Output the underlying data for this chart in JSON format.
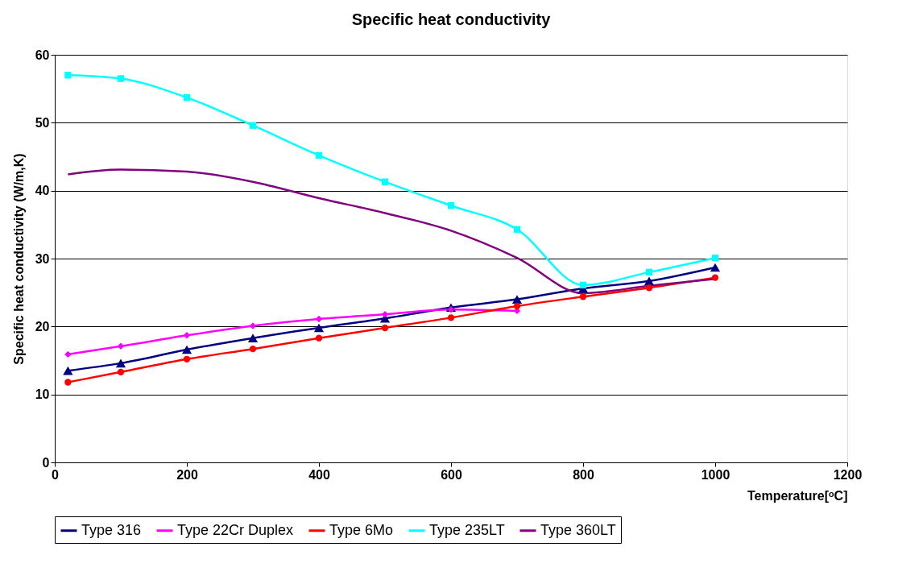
{
  "chart_data": {
    "type": "line",
    "title": "Specific heat conductivity",
    "xlabel": "Temperature[ᵒC]",
    "ylabel": "Specific heat conductivity (W/m,K)",
    "x": [
      20,
      100,
      200,
      300,
      400,
      500,
      600,
      700,
      800,
      900,
      1000
    ],
    "series": [
      {
        "name": "Type 316",
        "color": "#000080",
        "marker": "triangle",
        "values": [
          13.5,
          14.6,
          16.6,
          18.3,
          19.8,
          21.2,
          22.8,
          24.0,
          25.6,
          26.7,
          28.7
        ]
      },
      {
        "name": "Type 22Cr Duplex",
        "color": "#ff00ff",
        "marker": "diamond",
        "values": [
          15.9,
          17.1,
          18.7,
          20.1,
          21.1,
          21.8,
          22.5,
          22.3,
          null,
          null,
          null
        ]
      },
      {
        "name": "Type 6Mo",
        "color": "#ff0000",
        "marker": "circle",
        "values": [
          11.8,
          13.3,
          15.2,
          16.7,
          18.3,
          19.8,
          21.3,
          23.0,
          24.4,
          25.7,
          27.2
        ]
      },
      {
        "name": "Type 235LT",
        "color": "#00ffff",
        "marker": "square",
        "values": [
          57.0,
          56.5,
          53.7,
          49.6,
          45.2,
          41.3,
          37.8,
          34.3,
          26.1,
          28.0,
          30.1
        ]
      },
      {
        "name": "Type 360LT",
        "color": "#800080",
        "marker": "none",
        "values": [
          42.4,
          43.1,
          42.8,
          41.3,
          38.9,
          36.7,
          34.1,
          30.1,
          24.9,
          26.0,
          27.0
        ]
      }
    ],
    "xlim": [
      0,
      1200
    ],
    "xticks": [
      0,
      200,
      400,
      600,
      800,
      1000,
      1200
    ],
    "ylim": [
      0,
      60
    ],
    "yticks": [
      0,
      10,
      20,
      30,
      40,
      50,
      60
    ],
    "grid": "y",
    "legend": "bottom"
  }
}
